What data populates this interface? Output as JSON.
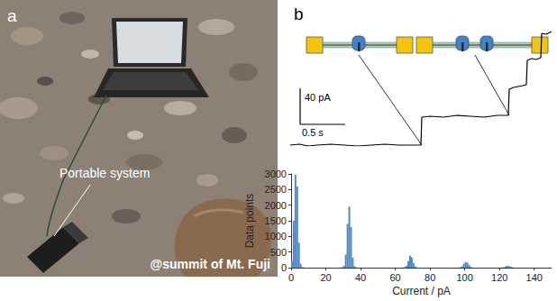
{
  "panel_a": {
    "label": "a",
    "annotations": [
      "Portable system",
      "@summit of Mt. Fuji"
    ]
  },
  "panel_b": {
    "label": "b"
  },
  "chart_data": [
    {
      "type": "line",
      "x": [
        0,
        0.1,
        0.2,
        0.3,
        0.45,
        0.6,
        0.75,
        0.9,
        1.05,
        1.2,
        1.35,
        1.45,
        1.46,
        1.55,
        1.7,
        1.85,
        2.0,
        2.15,
        2.3,
        2.42,
        2.43,
        2.48,
        2.53,
        2.58,
        2.62,
        2.63,
        2.68,
        2.73,
        2.78,
        2.79,
        2.84,
        2.9
      ],
      "values": [
        2,
        3,
        1,
        2,
        3,
        2,
        1,
        2,
        3,
        2,
        2,
        2,
        33,
        34,
        33,
        35,
        34,
        33,
        35,
        35,
        64,
        66,
        67,
        68,
        69,
        96,
        98,
        97,
        99,
        126,
        125,
        128
      ],
      "color": "#000000",
      "tick_labels": false,
      "scale_bars": [
        {
          "axis": "y",
          "value": 40,
          "label": "40 pA"
        },
        {
          "axis": "x",
          "value": 0.5,
          "label": "0.5 s"
        }
      ]
    },
    {
      "type": "histogram",
      "xlabel": "Current / pA",
      "ylabel": "Data points",
      "color": "#4a86c8",
      "xlim": [
        0,
        150
      ],
      "ylim": [
        0,
        3000
      ],
      "xticks": [
        0,
        20,
        40,
        60,
        80,
        100,
        120,
        140
      ],
      "yticks": [
        0,
        500,
        1000,
        1500,
        2000,
        2500,
        3000
      ],
      "grid": false,
      "bins": [
        0,
        1,
        2,
        3,
        4,
        5,
        6,
        7,
        8,
        9,
        10,
        11,
        12,
        13,
        14,
        15,
        16,
        17,
        18,
        19,
        20,
        21,
        22,
        23,
        24,
        25,
        26,
        27,
        28,
        29,
        30,
        31,
        32,
        33,
        34,
        35,
        36,
        37,
        38,
        39,
        40,
        41,
        42,
        43,
        44,
        45,
        46,
        47,
        48,
        49,
        50,
        51,
        52,
        53,
        54,
        55,
        56,
        57,
        58,
        59,
        60,
        61,
        62,
        63,
        64,
        65,
        66,
        67,
        68,
        69,
        70,
        71,
        72,
        73,
        74,
        75,
        76,
        77,
        78,
        79,
        80,
        81,
        82,
        83,
        84,
        85,
        86,
        87,
        88,
        89,
        90,
        91,
        92,
        93,
        94,
        95,
        96,
        97,
        98,
        99,
        100,
        101,
        102,
        103,
        104,
        105,
        106,
        107,
        108,
        109,
        110,
        111,
        112,
        113,
        114,
        115,
        116,
        117,
        118,
        119,
        120,
        121,
        122,
        123,
        124,
        125,
        126,
        127,
        128,
        129,
        130,
        131,
        132,
        133,
        134,
        135,
        136,
        137,
        138,
        139,
        140,
        141,
        142,
        143,
        144,
        145,
        146,
        147,
        148,
        149,
        150
      ],
      "counts": [
        200,
        1500,
        2980,
        2600,
        800,
        120,
        20,
        5,
        0,
        0,
        0,
        0,
        0,
        0,
        0,
        0,
        0,
        0,
        0,
        0,
        0,
        0,
        0,
        0,
        0,
        0,
        0,
        0,
        5,
        15,
        60,
        420,
        1400,
        1950,
        1300,
        320,
        50,
        8,
        0,
        0,
        0,
        0,
        0,
        0,
        0,
        0,
        0,
        0,
        0,
        0,
        0,
        0,
        0,
        0,
        0,
        0,
        0,
        0,
        0,
        0,
        0,
        0,
        0,
        0,
        5,
        20,
        60,
        210,
        380,
        330,
        150,
        40,
        8,
        0,
        0,
        0,
        0,
        0,
        0,
        0,
        0,
        0,
        0,
        0,
        0,
        0,
        0,
        0,
        0,
        0,
        0,
        0,
        0,
        0,
        0,
        0,
        5,
        15,
        45,
        120,
        180,
        160,
        85,
        25,
        5,
        0,
        0,
        0,
        0,
        0,
        0,
        0,
        0,
        0,
        0,
        0,
        0,
        0,
        0,
        0,
        0,
        5,
        18,
        40,
        55,
        50,
        30,
        12,
        4,
        0,
        0,
        0,
        0,
        0,
        0,
        0,
        0,
        0,
        0,
        0,
        0,
        0,
        0,
        0,
        0,
        0,
        0,
        0,
        0,
        0
      ]
    }
  ]
}
